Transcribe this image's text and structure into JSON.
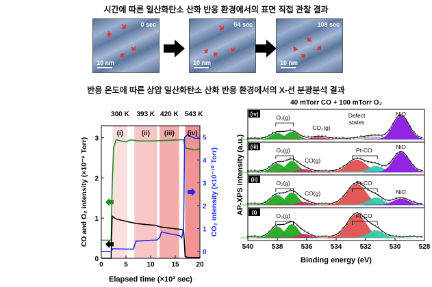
{
  "top_title": "시간에 따른 일산화탄소 산화 반응 환경에서의 표면 직접 관찰 결과",
  "stm_images": [
    {
      "time_label": "0 sec",
      "scale_label": "10 nm"
    },
    {
      "time_label": "54 sec",
      "scale_label": "10 nm"
    },
    {
      "time_label": "108 sec",
      "scale_label": "10 nm"
    }
  ],
  "bottom_title": "반응 온도에 따른 상압 일산화탄소 산화 반응 환경에서의 X-선 분광분석 결과",
  "colors": {
    "green": "#1a8c1a",
    "black": "#000000",
    "blue": "#1a2cff",
    "band": "#f08080",
    "arrow_red": "#e8332a"
  },
  "chart_data": [
    {
      "type": "line",
      "temperatures": [
        "300 K",
        "393 K",
        "420 K",
        "543 K"
      ],
      "regions": [
        {
          "label": "(i)",
          "x": [
            2.3,
            5.3
          ],
          "shade": 0.25
        },
        {
          "label": "(ii)",
          "x": [
            6.7,
            11.3
          ],
          "shade": 0.45
        },
        {
          "label": "(iii)",
          "x": [
            11.8,
            15.8
          ],
          "shade": 0.65
        },
        {
          "label": "(iv)",
          "x": [
            17.0,
            20.0
          ],
          "shade": 0.85
        }
      ],
      "xlabel": "Elapsed time (×10³ sec)",
      "ylabel_left": "CO and O₂ intensity (×10⁻⁹ Torr)",
      "ylabel_right": "CO₂ intensity (×10⁻¹⁰ Torr)",
      "xlim": [
        0,
        20
      ],
      "ylim_left": [
        0,
        3.3
      ],
      "ylim_right": [
        -0.3,
        5.5
      ],
      "xticks": [
        0,
        5,
        10,
        15,
        20
      ],
      "yticks_left": [
        0,
        1,
        2,
        3
      ],
      "yticks_right": [
        0,
        1,
        2,
        3,
        4,
        5
      ],
      "series": [
        {
          "color": "#1a8c1a",
          "axis": "left",
          "x": [
            0,
            2.0,
            2.2,
            2.5,
            3,
            4,
            5,
            6,
            7,
            8,
            10,
            12,
            14,
            16,
            16.7,
            17,
            18,
            19,
            20
          ],
          "y": [
            0.45,
            0.45,
            1.8,
            2.75,
            2.95,
            2.92,
            2.9,
            2.95,
            2.93,
            2.92,
            2.92,
            2.93,
            2.94,
            2.95,
            2.95,
            2.75,
            2.72,
            2.7,
            2.72
          ]
        },
        {
          "color": "#000000",
          "axis": "left",
          "x": [
            0,
            2.0,
            2.2,
            3,
            5,
            7,
            9,
            11,
            12,
            14,
            16,
            16.7,
            17,
            17.5,
            20
          ],
          "y": [
            0.0,
            0.0,
            1.05,
            0.98,
            0.92,
            0.87,
            0.84,
            0.82,
            0.78,
            0.75,
            0.72,
            0.7,
            0.05,
            0.02,
            0.02
          ]
        },
        {
          "color": "#1a2cff",
          "axis": "right",
          "x": [
            0,
            2.0,
            2.3,
            5,
            6.5,
            7,
            11.3,
            11.8,
            12.2,
            15.8,
            16.3,
            16.7,
            16.9,
            17.5,
            19,
            20
          ],
          "y": [
            0.0,
            0.0,
            0.12,
            0.1,
            0.1,
            0.45,
            0.5,
            0.6,
            0.85,
            0.7,
            0.6,
            1.0,
            5.0,
            5.1,
            4.95,
            4.95
          ]
        }
      ]
    },
    {
      "type": "line",
      "title": "40 mTorr CO + 100 mTorr O₂",
      "xlabel": "Binding energy (eV)",
      "ylabel": "AP-XPS intensity (a.u.)",
      "xlim": [
        540,
        528
      ],
      "xticks": [
        540,
        538,
        536,
        534,
        532,
        530,
        528
      ],
      "panels": [
        {
          "label": "(iv)",
          "annotations": [
            "O₂(g)",
            "CO₂(g)",
            "Defect states",
            "NiO"
          ],
          "peaks": [
            {
              "c": 538.0,
              "h": 0.25,
              "w": 0.6,
              "color": "#22aa22"
            },
            {
              "c": 537.0,
              "h": 0.3,
              "w": 0.6,
              "color": "#22aa22"
            },
            {
              "c": 535.2,
              "h": 0.08,
              "w": 0.7,
              "color": "#c0306a"
            },
            {
              "c": 531.5,
              "h": 0.12,
              "w": 0.9,
              "color": "#bbbbbb"
            },
            {
              "c": 529.6,
              "h": 0.95,
              "w": 0.75,
              "color": "#8a1ae0"
            }
          ]
        },
        {
          "label": "(iii)",
          "annotations": [
            "O₂(g)",
            "CO(g)",
            "Pt-CO",
            "NiO"
          ],
          "peaks": [
            {
              "c": 538.0,
              "h": 0.35,
              "w": 0.6,
              "color": "#22aa22"
            },
            {
              "c": 537.0,
              "h": 0.45,
              "w": 0.6,
              "color": "#22aa22"
            },
            {
              "c": 536.2,
              "h": 0.12,
              "w": 0.6,
              "color": "#c0306a"
            },
            {
              "c": 532.6,
              "h": 0.5,
              "w": 0.9,
              "color": "#e05050"
            },
            {
              "c": 531.3,
              "h": 0.25,
              "w": 0.7,
              "color": "#33ccaa"
            },
            {
              "c": 529.6,
              "h": 0.8,
              "w": 0.75,
              "color": "#8a1ae0"
            }
          ]
        },
        {
          "label": "(ii)",
          "annotations": [
            "O₂(g)",
            "CO(g)",
            "Pt-CO",
            "NiO"
          ],
          "peaks": [
            {
              "c": 538.0,
              "h": 0.4,
              "w": 0.6,
              "color": "#22aa22"
            },
            {
              "c": 537.0,
              "h": 0.5,
              "w": 0.6,
              "color": "#22aa22"
            },
            {
              "c": 536.2,
              "h": 0.12,
              "w": 0.6,
              "color": "#c0306a"
            },
            {
              "c": 532.6,
              "h": 0.85,
              "w": 0.9,
              "color": "#e05050"
            },
            {
              "c": 531.3,
              "h": 0.3,
              "w": 0.7,
              "color": "#33ccaa"
            },
            {
              "c": 529.6,
              "h": 0.25,
              "w": 0.75,
              "color": "#8a1ae0"
            }
          ]
        },
        {
          "label": "(i)",
          "annotations": [
            "O₂(g)",
            "Pt-CO"
          ],
          "peaks": [
            {
              "c": 538.0,
              "h": 0.45,
              "w": 0.6,
              "color": "#22aa22"
            },
            {
              "c": 537.0,
              "h": 0.55,
              "w": 0.6,
              "color": "#22aa22"
            },
            {
              "c": 536.2,
              "h": 0.15,
              "w": 0.6,
              "color": "#c0306a"
            },
            {
              "c": 532.6,
              "h": 0.95,
              "w": 0.9,
              "color": "#e05050"
            },
            {
              "c": 531.3,
              "h": 0.3,
              "w": 0.7,
              "color": "#33ccaa"
            }
          ]
        }
      ]
    }
  ]
}
